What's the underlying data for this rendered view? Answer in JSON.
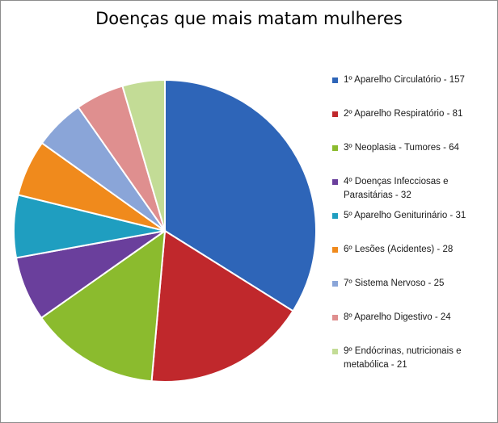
{
  "chart_data": {
    "type": "pie",
    "title": "Doenças que mais matam mulheres",
    "legend_position": "right",
    "slices": [
      {
        "label": "1º Aparelho Circulatório - 157",
        "value": 157,
        "color": "#2e65b8"
      },
      {
        "label": "2º Aparelho Respiratório - 81",
        "value": 81,
        "color": "#c0282c"
      },
      {
        "label": "3º Neoplasia - Tumores - 64",
        "value": 64,
        "color": "#8bbb2e"
      },
      {
        "label": "4º Doenças Infecciosas e Parasitárias - 32",
        "value": 32,
        "color": "#6a3f9c"
      },
      {
        "label": "5º Aparelho Geniturinário - 31",
        "value": 31,
        "color": "#1f9ec0"
      },
      {
        "label": "6º Lesões (Acidentes) - 28",
        "value": 28,
        "color": "#f08a1c"
      },
      {
        "label": "7º Sistema Nervoso - 25",
        "value": 25,
        "color": "#8aa5d8"
      },
      {
        "label": "8º Aparelho Digestivo - 24",
        "value": 24,
        "color": "#df8f8f"
      },
      {
        "label": "9º Endócrinas, nutricionais e metabólica - 21",
        "value": 21,
        "color": "#c3dc96"
      }
    ]
  }
}
